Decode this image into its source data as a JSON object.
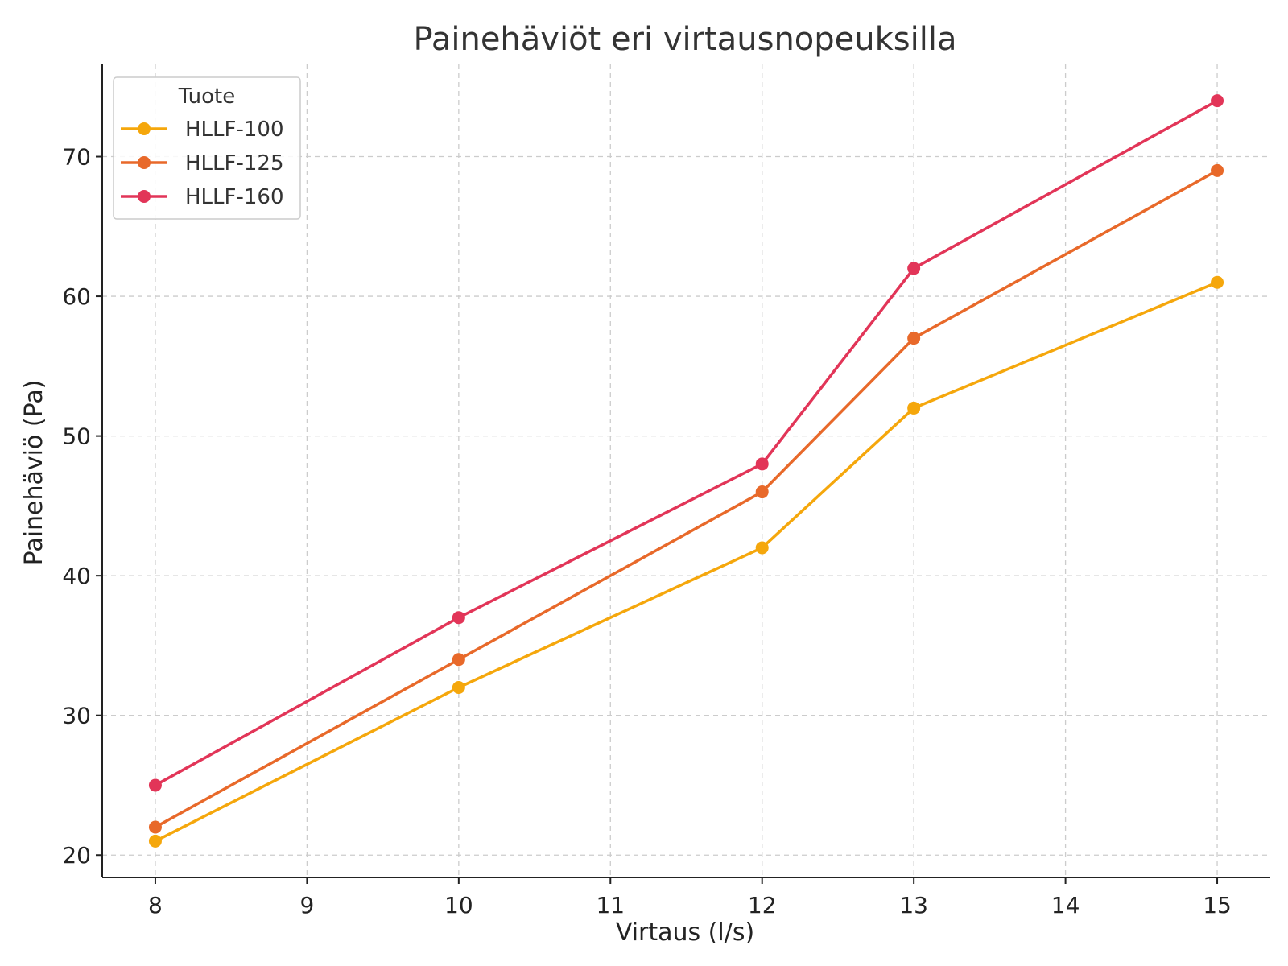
{
  "chart_data": {
    "type": "line",
    "title": "Painehäviöt eri virtausnopeuksilla",
    "xlabel": "Virtaus (l/s)",
    "ylabel": "Painehäviö (Pa)",
    "x": [
      8,
      10,
      12,
      13,
      15
    ],
    "xlim": [
      7.65,
      15.35
    ],
    "ylim": [
      18.4,
      76.6
    ],
    "xticks": [
      8,
      9,
      10,
      11,
      12,
      13,
      14,
      15
    ],
    "yticks": [
      20,
      30,
      40,
      50,
      60,
      70
    ],
    "grid": true,
    "legend": {
      "title": "Tuote",
      "position": "top-left"
    },
    "series": [
      {
        "name": "HLLF-100",
        "color": "#F5A70C",
        "values": [
          21,
          32,
          42,
          52,
          61
        ]
      },
      {
        "name": "HLLF-125",
        "color": "#E8692A",
        "values": [
          22,
          34,
          46,
          57,
          69
        ]
      },
      {
        "name": "HLLF-160",
        "color": "#E23558",
        "values": [
          25,
          37,
          48,
          62,
          74
        ]
      }
    ]
  }
}
